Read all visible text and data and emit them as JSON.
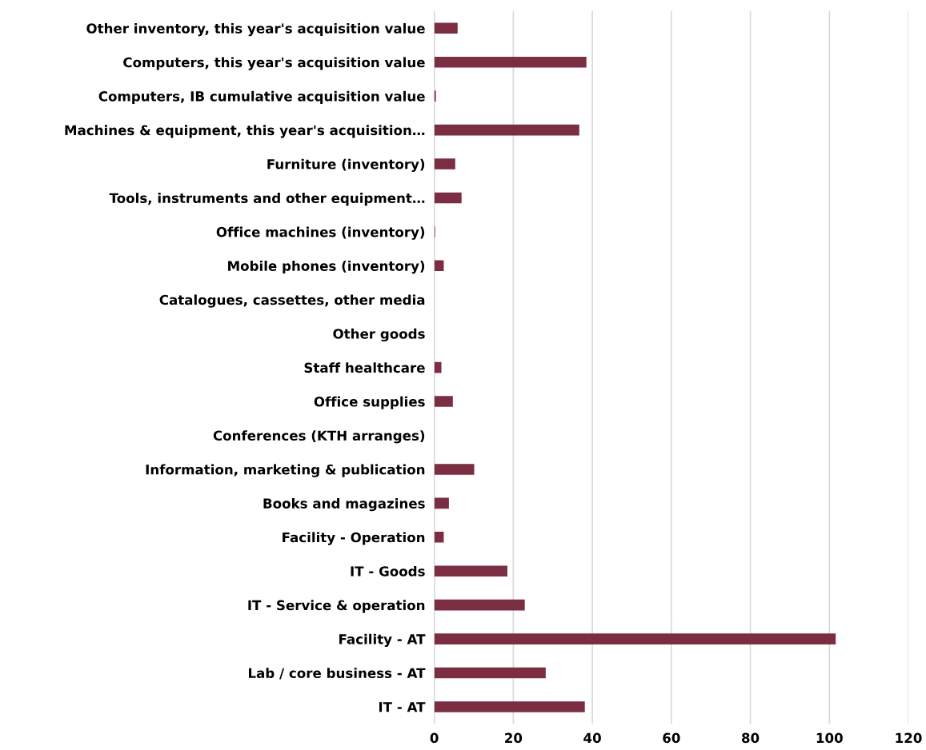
{
  "chart_data": {
    "type": "bar",
    "orientation": "horizontal",
    "categories": [
      "Other inventory, this year's acquisition value",
      "Computers, this year's acquisition value",
      "Computers, IB cumulative acquisition value",
      "Machines & equipment, this year's acquisition…",
      "Furniture (inventory)",
      "Tools, instruments and other equipment…",
      "Office machines (inventory)",
      "Mobile phones (inventory)",
      "Catalogues, cassettes, other media",
      "Other goods",
      "Staff healthcare",
      "Office supplies",
      "Conferences (KTH arranges)",
      "Information, marketing & publication",
      "Books and magazines",
      "Facility - Operation",
      "IT - Goods",
      "IT - Service & operation",
      "Facility - AT",
      "Lab / core business - AT",
      "IT - AT"
    ],
    "values": [
      5.9,
      38.5,
      0.4,
      36.7,
      5.3,
      6.9,
      0.2,
      2.4,
      0,
      0,
      1.8,
      4.7,
      0,
      10.1,
      3.7,
      2.4,
      18.5,
      22.9,
      101.6,
      28.2,
      38.1
    ],
    "color": "#7b2d42",
    "xlim": [
      0,
      120
    ],
    "xticks": [
      0,
      20,
      40,
      60,
      80,
      100,
      120
    ],
    "grid": "x"
  }
}
